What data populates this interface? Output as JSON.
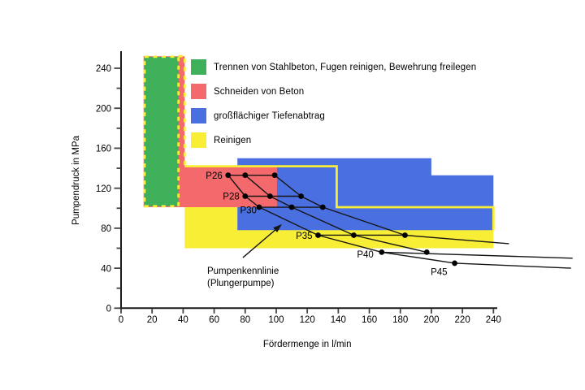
{
  "chart_data": {
    "type": "area",
    "subtype": "application-regions-with-pump-characteristic-curves",
    "title": "",
    "xlabel": "Fördermenge in l/min",
    "ylabel": "Pumpendruck in MPa",
    "xlim": [
      0,
      240
    ],
    "ylim": [
      0,
      257
    ],
    "grid": false,
    "legend_position": "upper-left-inside",
    "axis": {
      "x": {
        "label": "Fördermenge in l/min",
        "ticks": [
          0,
          20,
          40,
          60,
          80,
          100,
          120,
          140,
          160,
          180,
          200,
          220,
          240
        ]
      },
      "y": {
        "label": "Pumpendruck in MPa",
        "major_ticks": [
          0,
          40,
          80,
          120,
          160,
          200,
          240
        ],
        "minor_ticks": [
          20,
          60,
          100,
          140,
          180,
          220
        ]
      }
    },
    "regions": [
      {
        "id": "reinigen",
        "label": "Reinigen",
        "color": "#F8EE35",
        "points": [
          [
            41,
            142
          ],
          [
            139,
            142
          ],
          [
            139,
            101
          ],
          [
            240,
            101
          ],
          [
            240,
            60
          ],
          [
            41,
            60
          ]
        ]
      },
      {
        "id": "tiefenabtrag",
        "label": "großflächiger Tiefenabtrag",
        "color": "#4A6FE0",
        "points": [
          [
            75,
            150
          ],
          [
            200,
            150
          ],
          [
            200,
            133
          ],
          [
            240,
            133
          ],
          [
            240,
            78
          ],
          [
            75,
            78
          ]
        ]
      },
      {
        "id": "schneiden",
        "label": "Schneiden von Beton",
        "color": "#F4696B",
        "points": [
          [
            14.5,
            252
          ],
          [
            41,
            252
          ],
          [
            41,
            142
          ],
          [
            100.5,
            142
          ],
          [
            100.5,
            101
          ],
          [
            14.5,
            101
          ]
        ]
      },
      {
        "id": "trennen",
        "label": "Trennen von Stahlbeton, Fugen reinigen, Bewehrung freilegen",
        "color": "#3EB05A",
        "points": [
          [
            15.2,
            251.5
          ],
          [
            37,
            251.5
          ],
          [
            37,
            102
          ],
          [
            15.2,
            102
          ]
        ],
        "border": {
          "color": "#F8EE35",
          "style": "dashed"
        }
      }
    ],
    "reinigen_boundary": {
      "color": "#F8EE35",
      "solid": [
        [
          41,
          142
        ],
        [
          139,
          142
        ],
        [
          139,
          101
        ],
        [
          240,
          101
        ],
        [
          240,
          78
        ]
      ],
      "dashed": [
        [
          37,
          252
        ],
        [
          41,
          252
        ],
        [
          41,
          142
        ]
      ]
    },
    "legend": [
      {
        "id": "trennen",
        "label": "Trennen von Stahlbeton, Fugen reinigen, Bewehrung freilegen",
        "color": "#3EB05A"
      },
      {
        "id": "schneiden",
        "label": "Schneiden von Beton",
        "color": "#F4696B"
      },
      {
        "id": "tiefenabtrag",
        "label": "großflächiger Tiefenabtrag",
        "color": "#4A6FE0"
      },
      {
        "id": "reinigen",
        "label": "Reinigen",
        "color": "#F8EE35"
      }
    ],
    "pump_rows": [
      {
        "label": "P26",
        "pressure": 133,
        "flows": [
          69,
          80,
          99
        ],
        "line_end": null
      },
      {
        "label": "P28",
        "pressure": 112,
        "flows": [
          80,
          96,
          116
        ],
        "line_end": null
      },
      {
        "label": "P30",
        "pressure": 101,
        "flows": [
          89,
          110,
          130
        ],
        "line_end": null
      },
      {
        "label": "P35",
        "pressure": 73,
        "flows": [
          127,
          150,
          183
        ],
        "line_end": null
      },
      {
        "label": "P40",
        "pressure": 56,
        "flows": [
          168,
          197
        ],
        "line_end": [
          291,
          50
        ]
      },
      {
        "label": "P45",
        "pressure": 45,
        "flows": [
          215
        ],
        "line_end": [
          290,
          40
        ]
      }
    ],
    "characteristic_curves": [
      {
        "id": "kennlinie-1",
        "points": [
          [
            69,
            133
          ],
          [
            80,
            112
          ],
          [
            89,
            101
          ],
          [
            127,
            73
          ],
          [
            168,
            56
          ],
          [
            215,
            45
          ]
        ]
      },
      {
        "id": "kennlinie-2",
        "points": [
          [
            80,
            133
          ],
          [
            96,
            112
          ],
          [
            110,
            101
          ],
          [
            150,
            73
          ],
          [
            197,
            56
          ]
        ]
      },
      {
        "id": "kennlinie-3",
        "points": [
          [
            99,
            133
          ],
          [
            116,
            112
          ],
          [
            130,
            101
          ],
          [
            183,
            73
          ],
          [
            250,
            64.5
          ]
        ]
      }
    ],
    "annotation": {
      "lines": [
        "Pumpenkennlinie",
        "(Plungerpumpe)"
      ],
      "x": 55.5,
      "y": [
        34.4,
        22.2
      ],
      "arrow": {
        "from": [
          78.5,
          50.6
        ],
        "to": [
          103.7,
          84
        ]
      }
    }
  }
}
